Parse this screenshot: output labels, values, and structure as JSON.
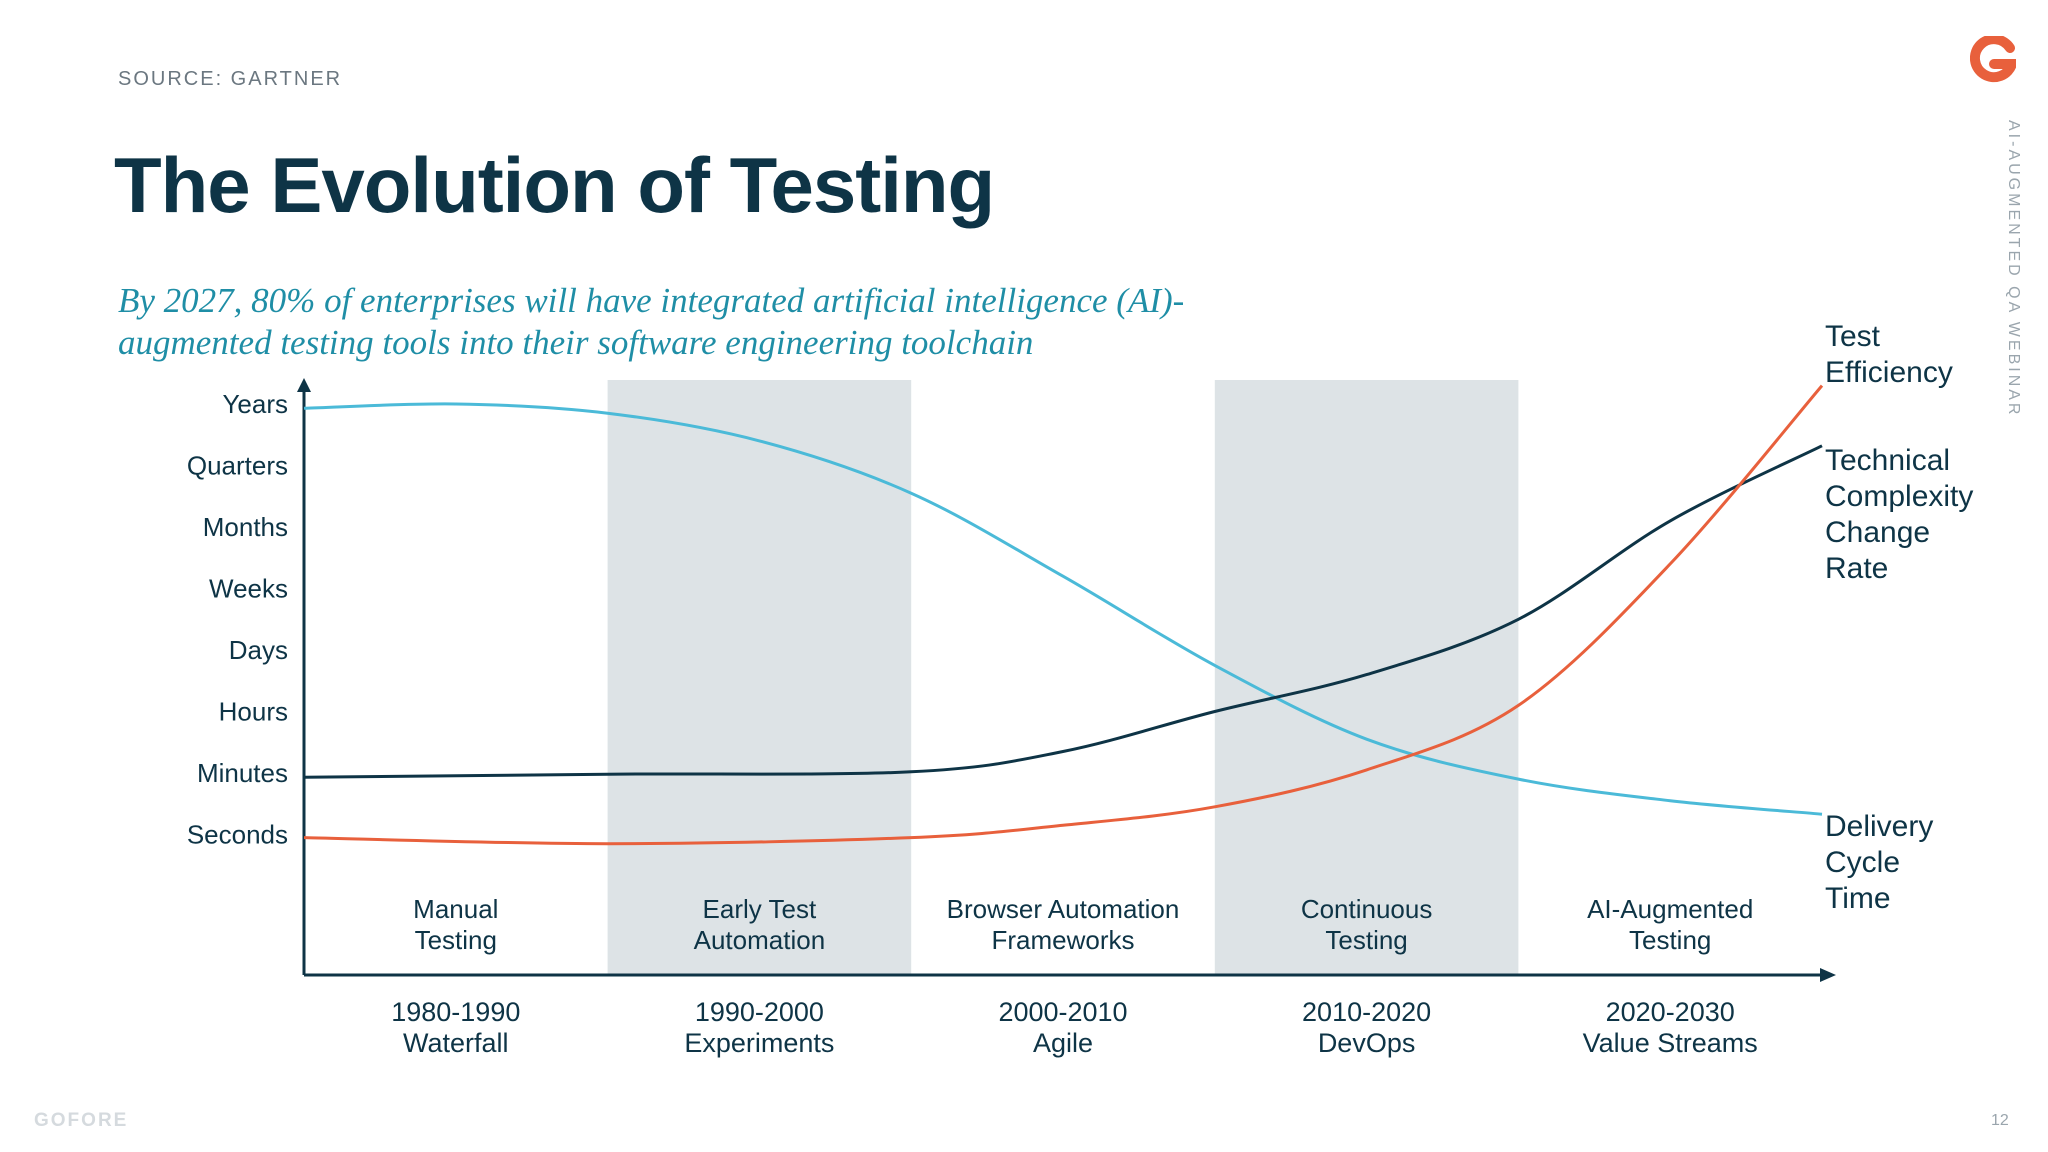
{
  "header": {
    "source": "SOURCE: GARTNER",
    "title": "The Evolution of Testing",
    "subtitle_line1": "By 2027, 80% of enterprises will have integrated artificial intelligence (AI)-",
    "subtitle_line2": "augmented testing tools into their software engineering toolchain"
  },
  "side_label": "AI-AUGMENTED QA WEBINAR",
  "footer": {
    "brand": "GOFORE",
    "page_number": "12"
  },
  "logo_icon": "gofore-g-logo",
  "colors": {
    "navy": "#0e3446",
    "teal": "#1f8ea6",
    "light_blue": "#4bbad8",
    "orange": "#e8603c",
    "band": "#dde3e6",
    "logo": "#e8603c"
  },
  "chart_data": {
    "type": "line",
    "y_scale": [
      "Seconds",
      "Minutes",
      "Hours",
      "Days",
      "Weeks",
      "Months",
      "Quarters",
      "Years"
    ],
    "y_tick_labels": [
      "Years",
      "Quarters",
      "Months",
      "Weeks",
      "Days",
      "Hours",
      "Minutes",
      "Seconds"
    ],
    "x": [
      "1980",
      "1990",
      "2000",
      "2010",
      "2020",
      "2030"
    ],
    "stages": [
      {
        "label_line1": "Manual",
        "label_line2": "Testing",
        "shaded": false
      },
      {
        "label_line1": "Early Test",
        "label_line2": "Automation",
        "shaded": true
      },
      {
        "label_line1": "Browser Automation",
        "label_line2": "Frameworks",
        "shaded": false
      },
      {
        "label_line1": "Continuous",
        "label_line2": "Testing",
        "shaded": true
      },
      {
        "label_line1": "AI-Augmented",
        "label_line2": "Testing",
        "shaded": false
      }
    ],
    "eras": [
      {
        "label_line1": "1980-1990",
        "label_line2": "Waterfall"
      },
      {
        "label_line1": "1990-2000",
        "label_line2": "Experiments"
      },
      {
        "label_line1": "2000-2010",
        "label_line2": "Agile"
      },
      {
        "label_line1": "2010-2020",
        "label_line2": "DevOps"
      },
      {
        "label_line1": "2020-2030",
        "label_line2": "Value Streams"
      }
    ],
    "series": [
      {
        "name": "Delivery Cycle Time",
        "label_lines": [
          "Delivery",
          "Cycle",
          "Time"
        ],
        "color": "#4bbad8",
        "points": [
          [
            1980,
            6.93
          ],
          [
            1985,
            7.0
          ],
          [
            1990,
            6.85
          ],
          [
            1995,
            6.4
          ],
          [
            2000,
            5.55
          ],
          [
            2005,
            4.2
          ],
          [
            2010,
            2.75
          ],
          [
            2015,
            1.55
          ],
          [
            2020,
            0.9
          ],
          [
            2025,
            0.55
          ],
          [
            2030,
            0.33
          ]
        ]
      },
      {
        "name": "Technical Complexity Change Rate",
        "label_lines": [
          "Technical",
          "Complexity",
          "Change",
          "Rate"
        ],
        "color": "#0e3446",
        "points": [
          [
            1980,
            0.93
          ],
          [
            1990,
            0.98
          ],
          [
            2000,
            1.02
          ],
          [
            2005,
            1.35
          ],
          [
            2010,
            2.0
          ],
          [
            2015,
            2.6
          ],
          [
            2020,
            3.5
          ],
          [
            2025,
            5.1
          ],
          [
            2030,
            6.32
          ]
        ]
      },
      {
        "name": "Test Efficiency",
        "label_lines": [
          "Test",
          "Efficiency"
        ],
        "color": "#e8603c",
        "points": [
          [
            1980,
            -0.05
          ],
          [
            1990,
            -0.15
          ],
          [
            2000,
            -0.05
          ],
          [
            2005,
            0.15
          ],
          [
            2010,
            0.45
          ],
          [
            2015,
            1.05
          ],
          [
            2020,
            2.1
          ],
          [
            2025,
            4.4
          ],
          [
            2030,
            7.3
          ]
        ]
      }
    ],
    "x_axis_arrow": true,
    "y_axis_arrow": true,
    "grid": false
  }
}
